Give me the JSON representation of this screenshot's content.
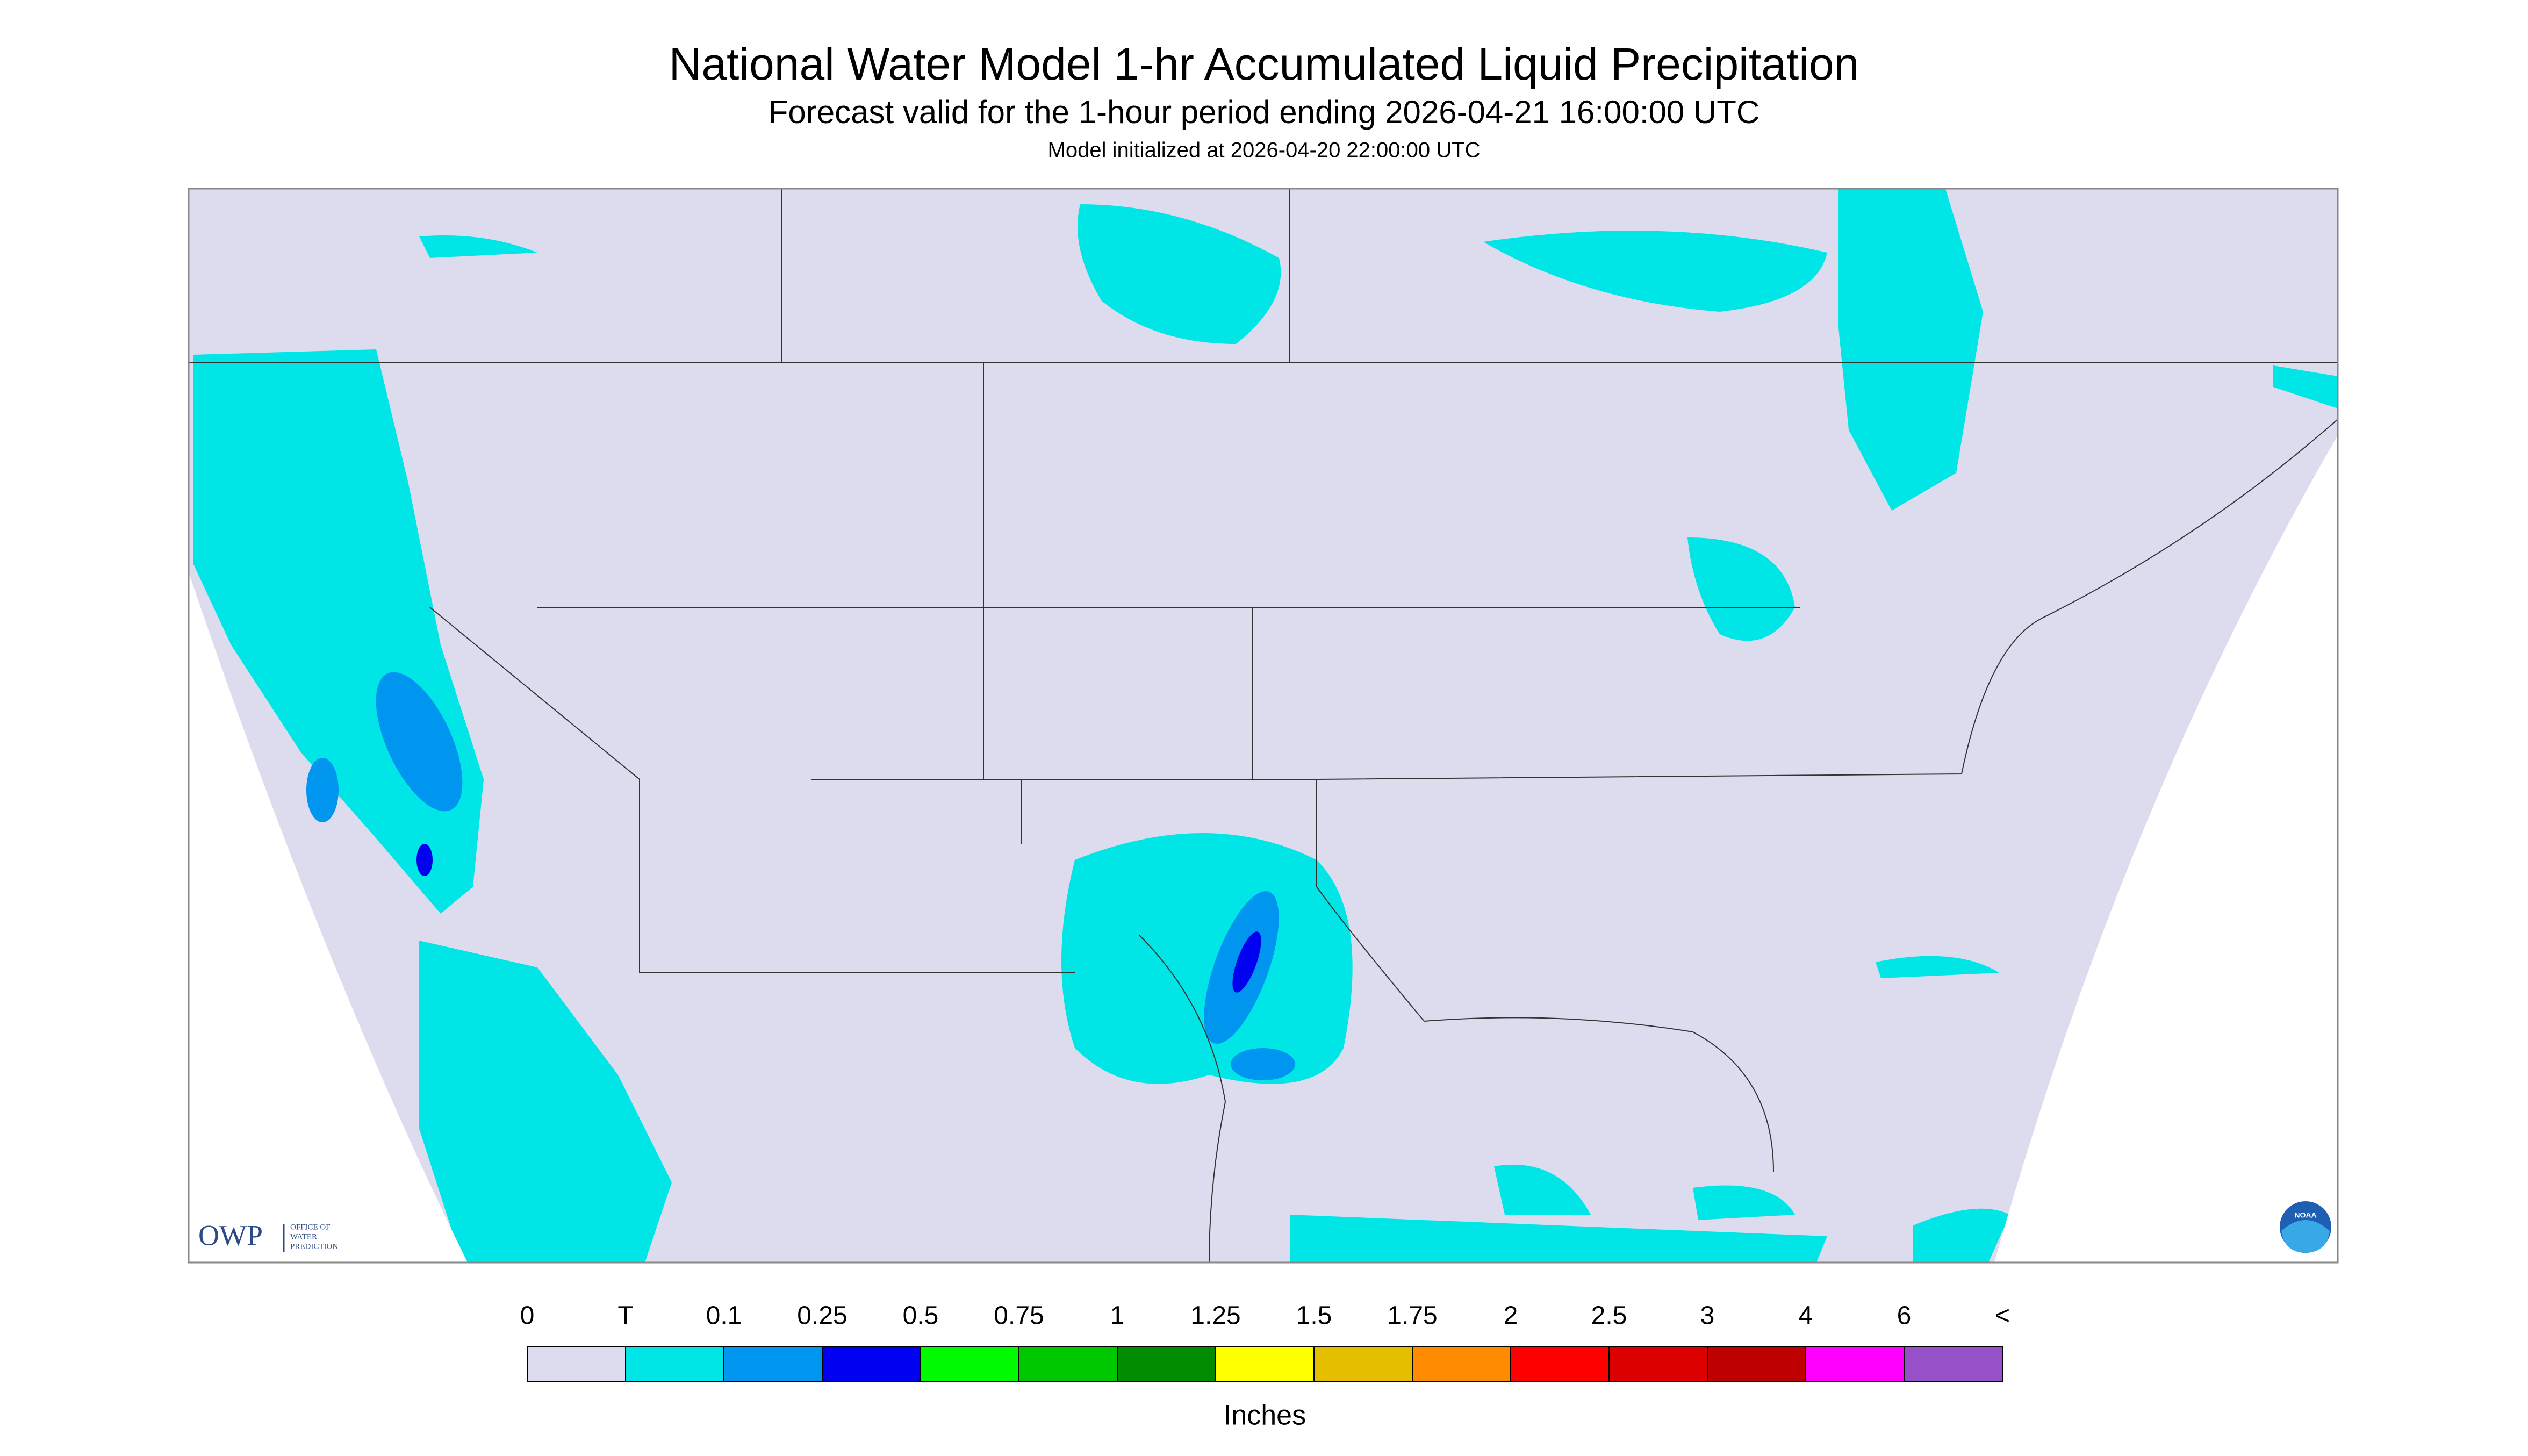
{
  "header": {
    "title": "National Water Model 1-hr Accumulated Liquid Precipitation",
    "subtitle": "Forecast valid for the 1-hour period ending 2026-04-21 16:00:00 UTC",
    "initialized": "Model initialized at 2026-04-20 22:00:00 UTC"
  },
  "legend": {
    "labels": [
      "0",
      "T",
      "0.1",
      "0.25",
      "0.5",
      "0.75",
      "1",
      "1.25",
      "1.5",
      "1.75",
      "2",
      "2.5",
      "3",
      "4",
      "6",
      "<"
    ],
    "colors": [
      "#dcdcee",
      "#00e6e6",
      "#0096f0",
      "#0000f0",
      "#00fa00",
      "#00c800",
      "#008c00",
      "#ffff00",
      "#e6be00",
      "#ff8c00",
      "#ff0000",
      "#dc0000",
      "#be0000",
      "#ff00ff",
      "#9650c8"
    ],
    "unit": "Inches"
  },
  "logos": {
    "owp": "OWP",
    "owp_lines": [
      "OFFICE OF",
      "WATER",
      "PREDICTION"
    ],
    "noaa": "NOAA"
  }
}
